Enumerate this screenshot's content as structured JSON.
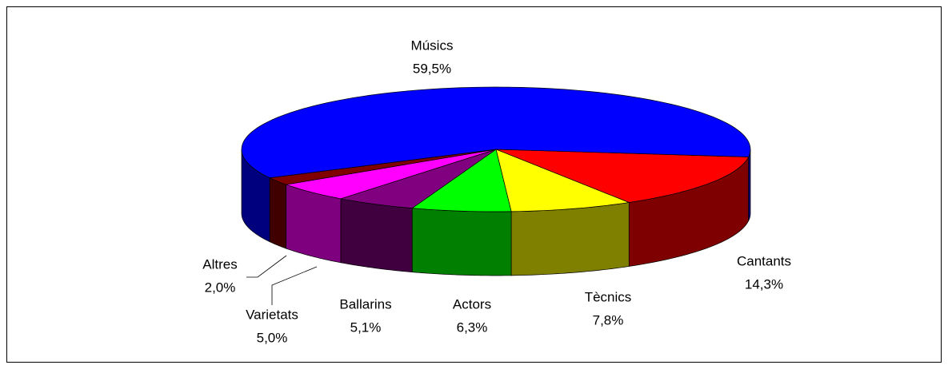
{
  "chart_data": {
    "type": "pie3d",
    "categories": [
      "Cantants",
      "Tècnics",
      "Actors",
      "Ballarins",
      "Varietats",
      "Altres",
      "Músics"
    ],
    "values": [
      14.3,
      7.8,
      6.3,
      5.1,
      5.0,
      2.0,
      59.5
    ],
    "value_labels": [
      "14,3%",
      "7,8%",
      "6,3%",
      "5,1%",
      "5,0%",
      "2,0%",
      "59,5%"
    ],
    "colors": [
      "#ff0000",
      "#ffff00",
      "#00ff00",
      "#800080",
      "#ff00ff",
      "#800000",
      "#0000ff"
    ]
  }
}
